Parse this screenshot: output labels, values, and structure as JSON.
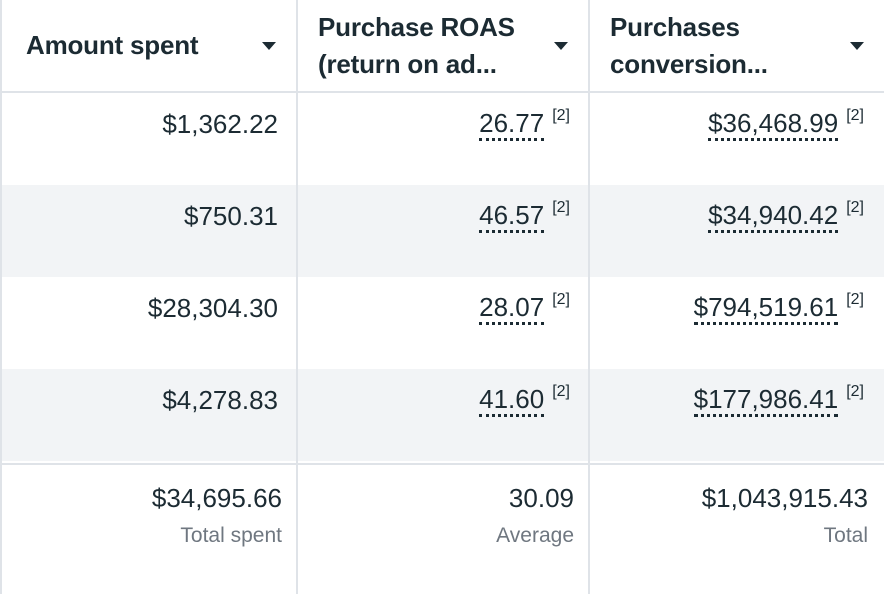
{
  "columns": [
    {
      "title": "Amount spent"
    },
    {
      "title_line1": "Purchase ROAS",
      "title_line2": "(return on ad..."
    },
    {
      "title_line1": "Purchases",
      "title_line2": "conversion..."
    }
  ],
  "rows": [
    {
      "amount": "$1,362.22",
      "roas": "26.77",
      "roas_note": "[2]",
      "conv": "$36,468.99",
      "conv_note": "[2]"
    },
    {
      "amount": "$750.31",
      "roas": "46.57",
      "roas_note": "[2]",
      "conv": "$34,940.42",
      "conv_note": "[2]"
    },
    {
      "amount": "$28,304.30",
      "roas": "28.07",
      "roas_note": "[2]",
      "conv": "$794,519.61",
      "conv_note": "[2]"
    },
    {
      "amount": "$4,278.83",
      "roas": "41.60",
      "roas_note": "[2]",
      "conv": "$177,986.41",
      "conv_note": "[2]"
    }
  ],
  "summary": {
    "amount": {
      "value": "$34,695.66",
      "label": "Total spent"
    },
    "roas": {
      "value": "30.09",
      "label": "Average"
    },
    "conv": {
      "value": "$1,043,915.43",
      "label": "Total"
    }
  }
}
